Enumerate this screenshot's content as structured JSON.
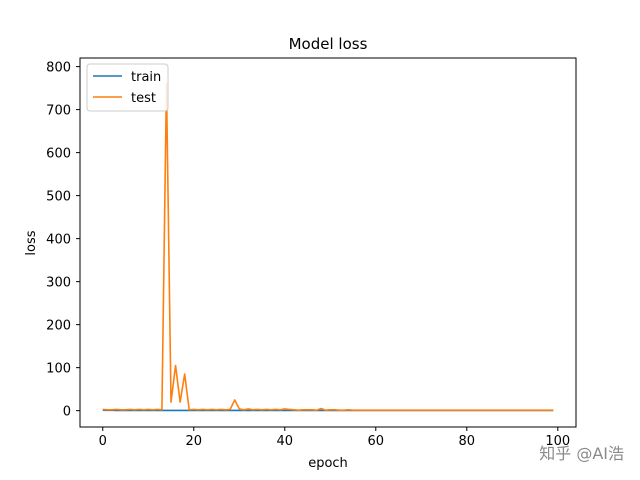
{
  "chart_data": {
    "type": "line",
    "title": "Model loss",
    "xlabel": "epoch",
    "ylabel": "loss",
    "xlim": [
      -5,
      104
    ],
    "ylim": [
      -38,
      820
    ],
    "xticks": [
      0,
      20,
      40,
      60,
      80,
      100
    ],
    "yticks": [
      0,
      100,
      200,
      300,
      400,
      500,
      600,
      700,
      800
    ],
    "grid": false,
    "legend_position": "upper-left",
    "series": [
      {
        "name": "train",
        "color": "#1f77b4",
        "x": [
          0,
          1,
          2,
          3,
          4,
          5,
          6,
          7,
          8,
          9,
          10,
          11,
          12,
          13,
          14,
          15,
          16,
          17,
          18,
          19,
          20,
          21,
          22,
          23,
          24,
          25,
          26,
          27,
          28,
          29,
          30,
          31,
          32,
          33,
          34,
          35,
          36,
          37,
          38,
          39,
          40,
          41,
          42,
          43,
          44,
          45,
          46,
          47,
          48,
          49,
          50,
          51,
          52,
          53,
          54,
          55,
          56,
          57,
          58,
          59,
          60,
          61,
          62,
          63,
          64,
          65,
          66,
          67,
          68,
          69,
          70,
          71,
          72,
          73,
          74,
          75,
          76,
          77,
          78,
          79,
          80,
          81,
          82,
          83,
          84,
          85,
          86,
          87,
          88,
          89,
          90,
          91,
          92,
          93,
          94,
          95,
          96,
          97,
          98,
          99
        ],
        "values": [
          1,
          0.8,
          0.7,
          0.6,
          0.6,
          0.5,
          0.5,
          0.5,
          0.5,
          0.5,
          0.5,
          0.5,
          0.5,
          0.5,
          0.5,
          0.5,
          0.5,
          0.5,
          0.5,
          0.5,
          0.5,
          0.5,
          0.5,
          0.5,
          0.5,
          0.5,
          0.5,
          0.5,
          0.5,
          0.5,
          0.5,
          0.5,
          0.5,
          0.5,
          0.5,
          0.5,
          0.5,
          0.5,
          0.5,
          0.5,
          0.5,
          0.5,
          0.5,
          0.5,
          0.5,
          0.5,
          0.5,
          0.5,
          0.5,
          0.5,
          0.5,
          0.5,
          0.5,
          0.5,
          0.5,
          0.5,
          0.5,
          0.5,
          0.5,
          0.5,
          0.5,
          0.5,
          0.5,
          0.5,
          0.5,
          0.5,
          0.5,
          0.5,
          0.5,
          0.5,
          0.5,
          0.5,
          0.5,
          0.5,
          0.5,
          0.5,
          0.5,
          0.5,
          0.5,
          0.5,
          0.5,
          0.5,
          0.5,
          0.5,
          0.5,
          0.5,
          0.5,
          0.5,
          0.5,
          0.5,
          0.5,
          0.5,
          0.5,
          0.5,
          0.5,
          0.5,
          0.5,
          0.5,
          0.5,
          0.5
        ]
      },
      {
        "name": "test",
        "color": "#ff7f0e",
        "x": [
          0,
          1,
          2,
          3,
          4,
          5,
          6,
          7,
          8,
          9,
          10,
          11,
          12,
          13,
          14,
          15,
          16,
          17,
          18,
          19,
          20,
          21,
          22,
          23,
          24,
          25,
          26,
          27,
          28,
          29,
          30,
          31,
          32,
          33,
          34,
          35,
          36,
          37,
          38,
          39,
          40,
          41,
          42,
          43,
          44,
          45,
          46,
          47,
          48,
          49,
          50,
          51,
          52,
          53,
          54,
          55,
          56,
          57,
          58,
          59,
          60,
          61,
          62,
          63,
          64,
          65,
          66,
          67,
          68,
          69,
          70,
          71,
          72,
          73,
          74,
          75,
          76,
          77,
          78,
          79,
          80,
          81,
          82,
          83,
          84,
          85,
          86,
          87,
          88,
          89,
          90,
          91,
          92,
          93,
          94,
          95,
          96,
          97,
          98,
          99
        ],
        "values": [
          3,
          2,
          2,
          3,
          2,
          2,
          3,
          2,
          3,
          2,
          3,
          2,
          3,
          2,
          760,
          20,
          105,
          20,
          85,
          2,
          3,
          2,
          3,
          2,
          3,
          2,
          3,
          2,
          3,
          25,
          4,
          2,
          4,
          2,
          3,
          2,
          3,
          2,
          3,
          2,
          4,
          3,
          2,
          1,
          2,
          2,
          2,
          1,
          5,
          1,
          2,
          2,
          1,
          1,
          2,
          1,
          1,
          1,
          1,
          1,
          1,
          1,
          1,
          1,
          1,
          1,
          1,
          1,
          1,
          1,
          1,
          1,
          1,
          1,
          1,
          1,
          1,
          1,
          1,
          1,
          1,
          1,
          1,
          1,
          1,
          1,
          1,
          1,
          1,
          1,
          1,
          1,
          1,
          1,
          1,
          1,
          1,
          1,
          1,
          1
        ]
      }
    ]
  },
  "watermark": "知乎 @AI浩"
}
